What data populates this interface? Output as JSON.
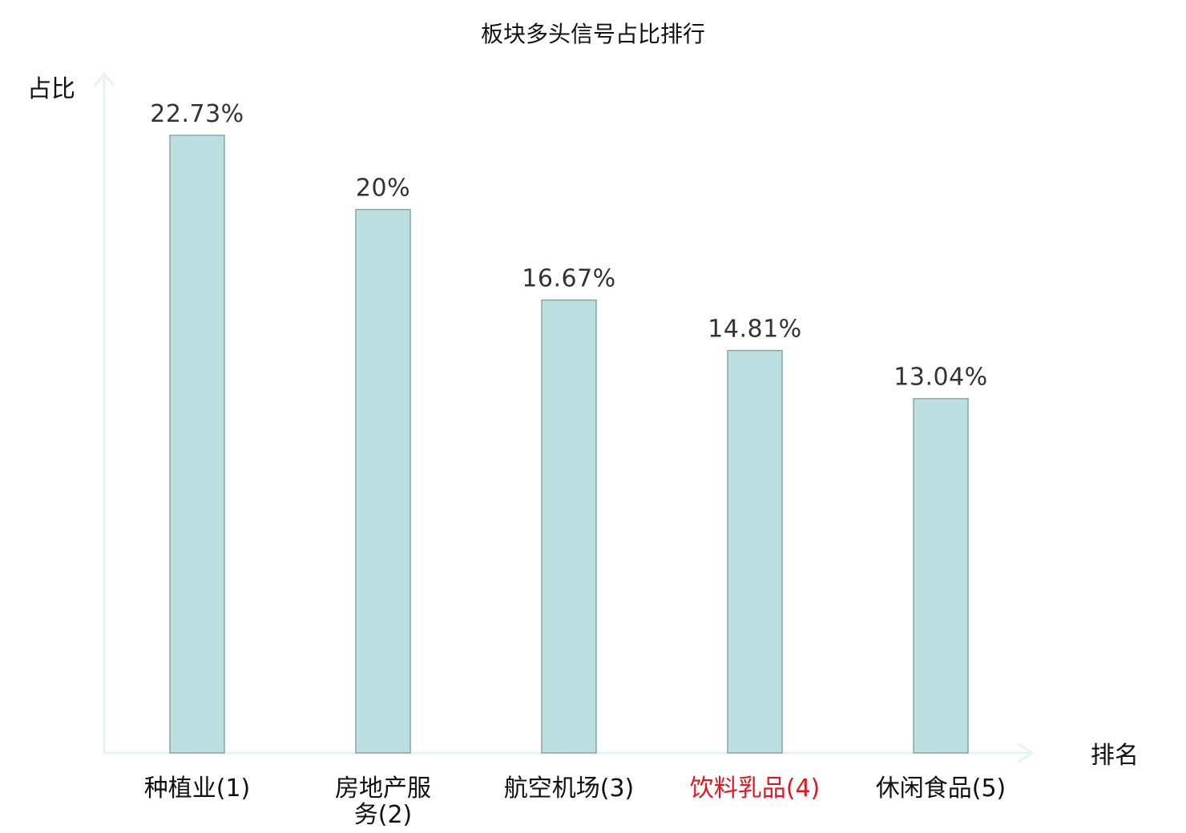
{
  "chart_data": {
    "type": "bar",
    "title": "板块多头信号占比排行",
    "xlabel": "排名",
    "ylabel": "占比",
    "ylim": [
      0,
      25
    ],
    "grid": false,
    "categories": [
      [
        "种植业(1)"
      ],
      [
        "房地产服",
        "务(2)"
      ],
      [
        "航空机场(3)"
      ],
      [
        "饮料乳品(4)"
      ],
      [
        "休闲食品(5)"
      ]
    ],
    "highlight_index": 3,
    "values": [
      22.73,
      20,
      16.67,
      14.81,
      13.04
    ],
    "value_labels": [
      "22.73%",
      "20%",
      "16.67%",
      "14.81%",
      "13.04%"
    ],
    "colors": {
      "bar_fill": "#bce0e2",
      "bar_stroke": "#86a6a6",
      "axis": "#e3f4f1",
      "text": "#111111",
      "value_text": "#333333",
      "highlight_text": "#e8141e"
    }
  }
}
